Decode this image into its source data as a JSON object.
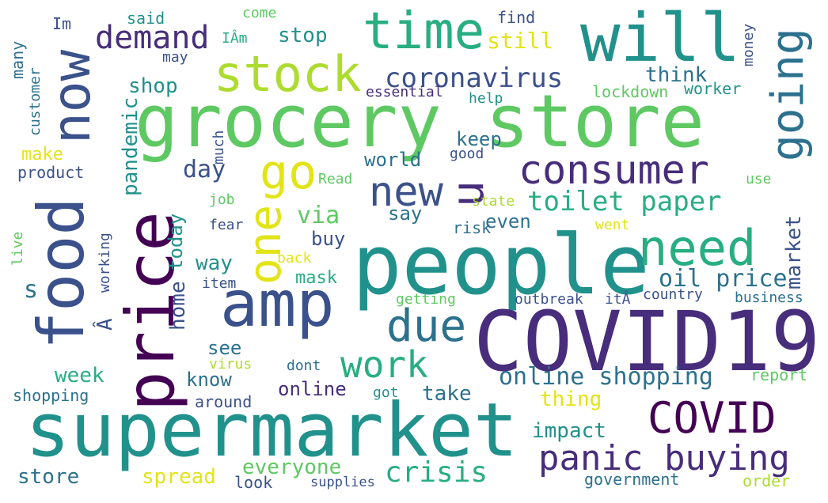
{
  "palette": {
    "dark_purple": "#440154",
    "indigo": "#472d7b",
    "slate_blue": "#3b518b",
    "steel_blue": "#2c718e",
    "teal": "#21918c",
    "sea_green": "#28ae80",
    "green": "#5ec962",
    "lime": "#addc30",
    "yellow": "#e2e418",
    "gold": "#fde725"
  },
  "words": [
    {
      "text": "grocery store",
      "color": "#5ec962"
    },
    {
      "text": "people",
      "color": "#21918c"
    },
    {
      "text": "supermarket",
      "color": "#21918c"
    },
    {
      "text": "COVID19",
      "color": "#472d7b"
    },
    {
      "text": "will",
      "color": "#21918c"
    },
    {
      "text": "price",
      "color": "#440154"
    },
    {
      "text": "food",
      "color": "#3b518b"
    },
    {
      "text": "amp",
      "color": "#3b518b"
    },
    {
      "text": "time",
      "color": "#28ae80"
    },
    {
      "text": "now",
      "color": "#3b518b"
    },
    {
      "text": "need",
      "color": "#28ae80"
    },
    {
      "text": "consumer",
      "color": "#472d7b"
    },
    {
      "text": "stock",
      "color": "#addc30"
    },
    {
      "text": "COVID",
      "color": "#440154"
    },
    {
      "text": "panic buying",
      "color": "#472d7b"
    },
    {
      "text": "going",
      "color": "#2c718e"
    },
    {
      "text": "go",
      "color": "#e2e418"
    },
    {
      "text": "new",
      "color": "#3b518b"
    },
    {
      "text": "due",
      "color": "#2c718e"
    },
    {
      "text": "one",
      "color": "#e2e418"
    },
    {
      "text": "u",
      "color": "#472d7b"
    },
    {
      "text": "demand",
      "color": "#472d7b"
    },
    {
      "text": "work",
      "color": "#28ae80"
    },
    {
      "text": "toilet paper",
      "color": "#28ae80"
    },
    {
      "text": "coronavirus",
      "color": "#3b518b"
    },
    {
      "text": "crisis",
      "color": "#28ae80"
    },
    {
      "text": "online shopping",
      "color": "#2c718e"
    },
    {
      "text": "oil price",
      "color": "#2c718e"
    },
    {
      "text": "pandemic",
      "color": "#21918c"
    },
    {
      "text": "market",
      "color": "#3b518b"
    },
    {
      "text": "day",
      "color": "#3b518b"
    },
    {
      "text": "via",
      "color": "#5ec962"
    },
    {
      "text": "home",
      "color": "#3b518b"
    },
    {
      "text": "week",
      "color": "#28ae80"
    },
    {
      "text": "spread",
      "color": "#e2e418"
    },
    {
      "text": "store",
      "color": "#2c718e"
    },
    {
      "text": "everyone",
      "color": "#5ec962"
    },
    {
      "text": "online",
      "color": "#472d7b"
    },
    {
      "text": "take",
      "color": "#2c718e"
    },
    {
      "text": "impact",
      "color": "#21918c"
    },
    {
      "text": "thing",
      "color": "#e2e418"
    },
    {
      "text": "see",
      "color": "#2c718e"
    },
    {
      "text": "know",
      "color": "#2c718e"
    },
    {
      "text": "way",
      "color": "#21918c"
    },
    {
      "text": "world",
      "color": "#2c718e"
    },
    {
      "text": "keep",
      "color": "#2c718e"
    },
    {
      "text": "still",
      "color": "#e2e418"
    },
    {
      "text": "stop",
      "color": "#21918c"
    },
    {
      "text": "shop",
      "color": "#21918c"
    },
    {
      "text": "think",
      "color": "#2c718e"
    },
    {
      "text": "say",
      "color": "#2c718e"
    },
    {
      "text": "even",
      "color": "#2c718e"
    },
    {
      "text": "mask",
      "color": "#28ae80"
    },
    {
      "text": "buy",
      "color": "#3b518b"
    },
    {
      "text": "today",
      "color": "#21918c"
    },
    {
      "text": "s",
      "color": "#2c718e"
    },
    {
      "text": "make",
      "color": "#e2e418"
    },
    {
      "text": "product",
      "color": "#3b518b"
    },
    {
      "text": "customer",
      "color": "#2c718e"
    },
    {
      "text": "many",
      "color": "#2c718e"
    },
    {
      "text": "Im",
      "color": "#3b518b"
    },
    {
      "text": "said",
      "color": "#21918c"
    },
    {
      "text": "may",
      "color": "#3b518b"
    },
    {
      "text": "IÂm",
      "color": "#28ae80"
    },
    {
      "text": "come",
      "color": "#5ec962"
    },
    {
      "text": "find",
      "color": "#3b518b"
    },
    {
      "text": "money",
      "color": "#3b518b"
    },
    {
      "text": "essential",
      "color": "#472d7b"
    },
    {
      "text": "help",
      "color": "#21918c"
    },
    {
      "text": "lockdown",
      "color": "#5ec962"
    },
    {
      "text": "worker",
      "color": "#21918c"
    },
    {
      "text": "much",
      "color": "#3b518b"
    },
    {
      "text": "good",
      "color": "#3b518b"
    },
    {
      "text": "Read",
      "color": "#5ec962"
    },
    {
      "text": "state",
      "color": "#addc30"
    },
    {
      "text": "use",
      "color": "#5ec962"
    },
    {
      "text": "risk",
      "color": "#2c718e"
    },
    {
      "text": "job",
      "color": "#5ec962"
    },
    {
      "text": "fear",
      "color": "#3b518b"
    },
    {
      "text": "went",
      "color": "#e2e418"
    },
    {
      "text": "working",
      "color": "#3b518b"
    },
    {
      "text": "back",
      "color": "#e2e418"
    },
    {
      "text": "item",
      "color": "#3b518b"
    },
    {
      "text": "live",
      "color": "#5ec962"
    },
    {
      "text": "Â",
      "color": "#3b518b"
    },
    {
      "text": "getting",
      "color": "#5ec962"
    },
    {
      "text": "outbreak",
      "color": "#3b518b"
    },
    {
      "text": "itÂ",
      "color": "#3b518b"
    },
    {
      "text": "country",
      "color": "#3b518b"
    },
    {
      "text": "business",
      "color": "#2c718e"
    },
    {
      "text": "virus",
      "color": "#addc30"
    },
    {
      "text": "dont",
      "color": "#2c718e"
    },
    {
      "text": "report",
      "color": "#5ec962"
    },
    {
      "text": "shopping",
      "color": "#2c718e"
    },
    {
      "text": "around",
      "color": "#3b518b"
    },
    {
      "text": "got",
      "color": "#21918c"
    },
    {
      "text": "look",
      "color": "#3b518b"
    },
    {
      "text": "supplies",
      "color": "#3b518b"
    },
    {
      "text": "government",
      "color": "#2c718e"
    },
    {
      "text": "order",
      "color": "#addc30"
    }
  ]
}
